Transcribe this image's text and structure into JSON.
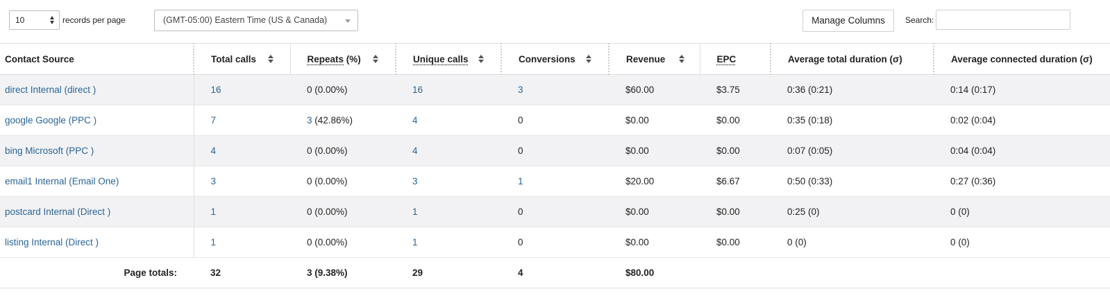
{
  "toolbar": {
    "page_size": "10",
    "records_label": "records per page",
    "timezone": "(GMT-05:00) Eastern Time (US & Canada)",
    "manage_columns_label": "Manage Columns",
    "search_label": "Search:",
    "search_value": ""
  },
  "table": {
    "headers": {
      "contact_source": "Contact Source",
      "total_calls": "Total calls",
      "repeats": "Repeats",
      "repeats_suffix": " (%)",
      "unique_calls": "Unique calls",
      "conversions": "Conversions",
      "revenue": "Revenue",
      "epc": "EPC",
      "avg_total_duration": "Average total duration (σ)",
      "avg_connected_duration": "Average connected duration (σ)"
    },
    "rows": [
      {
        "source": "direct Internal (direct )",
        "total_calls": "16",
        "repeats_count": "",
        "repeats_text": "0 (0.00%)",
        "unique_calls": "16",
        "conversions": "3",
        "revenue": "$60.00",
        "epc": "$3.75",
        "avg_total": "0:36 (0:21)",
        "avg_connected": "0:14 (0:17)"
      },
      {
        "source": "google Google (PPC )",
        "total_calls": "7",
        "repeats_count": "3",
        "repeats_text": " (42.86%)",
        "unique_calls": "4",
        "conversions": "0",
        "revenue": "$0.00",
        "epc": "$0.00",
        "avg_total": "0:35 (0:18)",
        "avg_connected": "0:02 (0:04)"
      },
      {
        "source": "bing Microsoft (PPC )",
        "total_calls": "4",
        "repeats_count": "",
        "repeats_text": "0 (0.00%)",
        "unique_calls": "4",
        "conversions": "0",
        "revenue": "$0.00",
        "epc": "$0.00",
        "avg_total": "0:07 (0:05)",
        "avg_connected": "0:04 (0:04)"
      },
      {
        "source": "email1 Internal (Email One)",
        "total_calls": "3",
        "repeats_count": "",
        "repeats_text": "0 (0.00%)",
        "unique_calls": "3",
        "conversions": "1",
        "revenue": "$20.00",
        "epc": "$6.67",
        "avg_total": "0:50 (0:33)",
        "avg_connected": "0:27 (0:36)"
      },
      {
        "source": "postcard Internal (Direct )",
        "total_calls": "1",
        "repeats_count": "",
        "repeats_text": "0 (0.00%)",
        "unique_calls": "1",
        "conversions": "0",
        "revenue": "$0.00",
        "epc": "$0.00",
        "avg_total": "0:25 (0)",
        "avg_connected": "0 (0)"
      },
      {
        "source": "listing Internal (Direct )",
        "total_calls": "1",
        "repeats_count": "",
        "repeats_text": "0 (0.00%)",
        "unique_calls": "1",
        "conversions": "0",
        "revenue": "$0.00",
        "epc": "$0.00",
        "avg_total": "0 (0)",
        "avg_connected": "0 (0)"
      }
    ],
    "totals": {
      "label": "Page totals:",
      "total_calls": "32",
      "repeats": "3 (9.38%)",
      "unique_calls": "29",
      "conversions": "4",
      "revenue": "$80.00"
    }
  },
  "colors": {
    "link": "#2a6496",
    "row_stripe": "#f2f2f4",
    "border": "#dddddd"
  }
}
